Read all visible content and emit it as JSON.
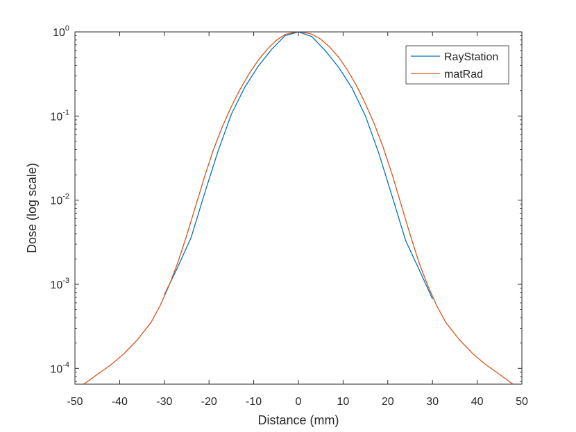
{
  "chart_data": {
    "type": "line",
    "title": "",
    "xlabel": "Distance (mm)",
    "ylabel": "Dose (log scale)",
    "xlim": [
      -50,
      50
    ],
    "ylim": [
      6.5e-05,
      1.0
    ],
    "yscale": "log",
    "grid": false,
    "legend_position": "top-right",
    "x_ticks": [
      -50,
      -40,
      -30,
      -20,
      -10,
      0,
      10,
      20,
      30,
      40,
      50
    ],
    "x_tick_labels": [
      "-50",
      "-40",
      "-30",
      "-20",
      "-10",
      "0",
      "10",
      "20",
      "30",
      "40",
      "50"
    ],
    "y_ticks": [
      {
        "value": 0.0001,
        "base": "10",
        "exp": "-4"
      },
      {
        "value": 0.001,
        "base": "10",
        "exp": "-3"
      },
      {
        "value": 0.01,
        "base": "10",
        "exp": "-2"
      },
      {
        "value": 0.1,
        "base": "10",
        "exp": "-1"
      },
      {
        "value": 1,
        "base": "10",
        "exp": "0"
      }
    ],
    "series": [
      {
        "name": "RayStation",
        "color": "#0072bd",
        "x": [
          -30,
          -27,
          -24,
          -21,
          -18,
          -15,
          -12,
          -9,
          -6,
          -3,
          0,
          3,
          6,
          9,
          12,
          15,
          18,
          21,
          24,
          27,
          30
        ],
        "y": [
          0.00075,
          0.0016,
          0.0036,
          0.012,
          0.038,
          0.105,
          0.22,
          0.39,
          0.62,
          0.9,
          1.0,
          0.88,
          0.6,
          0.38,
          0.215,
          0.1,
          0.036,
          0.011,
          0.0033,
          0.0015,
          0.00067
        ]
      },
      {
        "name": "matRad",
        "color": "#d95319",
        "x": [
          -48,
          -45,
          -42,
          -39,
          -36,
          -33,
          -31,
          -29,
          -27,
          -25,
          -23,
          -21,
          -19,
          -17,
          -15,
          -13,
          -11,
          -9,
          -7,
          -5,
          -3,
          -1,
          0,
          1,
          3,
          5,
          7,
          9,
          11,
          13,
          15,
          17,
          19,
          21,
          23,
          25,
          27,
          29,
          31,
          33,
          36,
          39,
          42,
          45,
          48
        ],
        "y": [
          6.5e-05,
          8.5e-05,
          0.00011,
          0.00015,
          0.00022,
          0.00035,
          0.00055,
          0.00095,
          0.0018,
          0.0038,
          0.0085,
          0.019,
          0.04,
          0.075,
          0.13,
          0.21,
          0.32,
          0.46,
          0.62,
          0.79,
          0.93,
          0.99,
          1.0,
          0.99,
          0.94,
          0.82,
          0.66,
          0.5,
          0.35,
          0.23,
          0.14,
          0.08,
          0.042,
          0.02,
          0.0088,
          0.0039,
          0.0018,
          0.00095,
          0.00055,
          0.00035,
          0.00022,
          0.00015,
          0.00011,
          8.5e-05,
          6.5e-05
        ]
      }
    ]
  }
}
